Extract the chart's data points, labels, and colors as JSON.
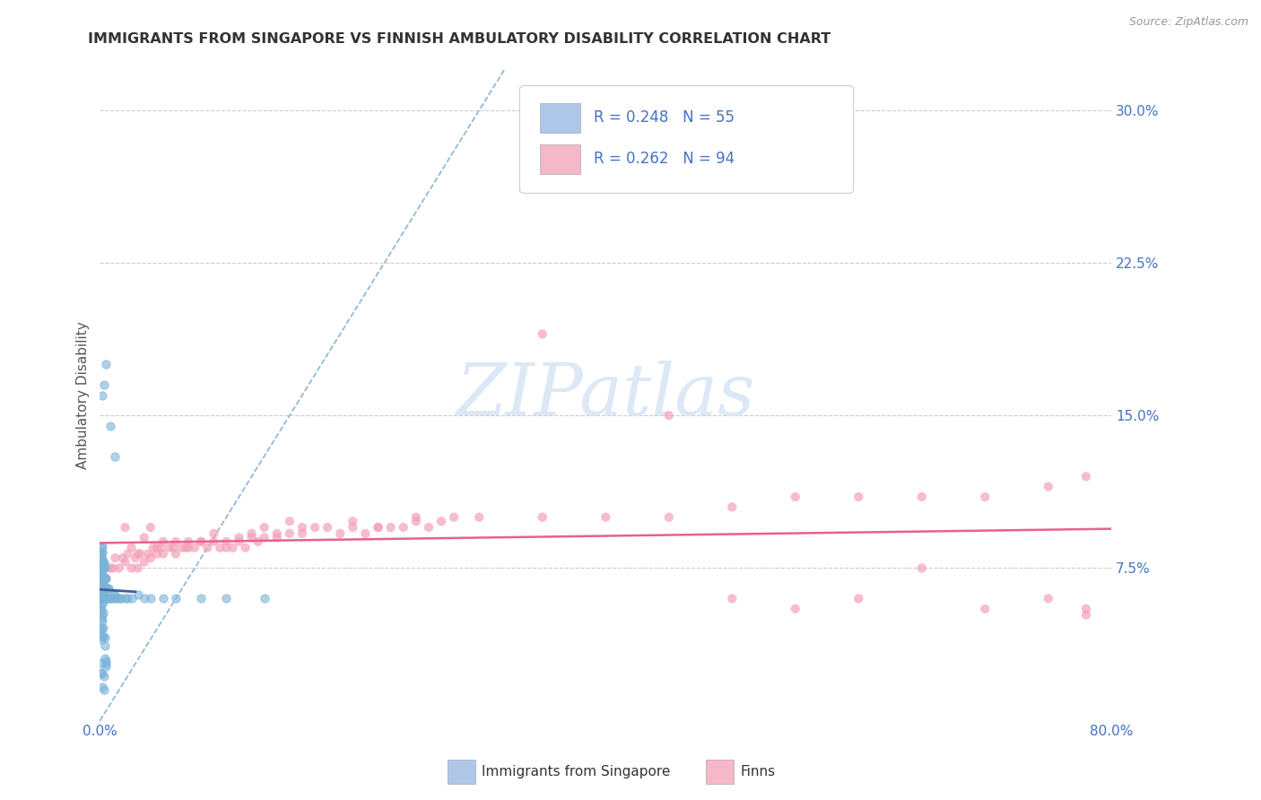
{
  "title": "IMMIGRANTS FROM SINGAPORE VS FINNISH AMBULATORY DISABILITY CORRELATION CHART",
  "source": "Source: ZipAtlas.com",
  "ylabel": "Ambulatory Disability",
  "xlim": [
    0.0,
    0.8
  ],
  "ylim": [
    0.0,
    0.32
  ],
  "yticks_right": [
    0.075,
    0.15,
    0.225,
    0.3
  ],
  "yticklabels_right": [
    "7.5%",
    "15.0%",
    "22.5%",
    "30.0%"
  ],
  "legend_label1": "R = 0.248   N = 55",
  "legend_label2": "R = 0.262   N = 94",
  "legend_color1": "#aec6e8",
  "legend_color2": "#f4b8c8",
  "series1_color": "#7ab3d8",
  "series2_color": "#f4a0b8",
  "trendline1_color": "#3a5fa0",
  "trendline2_color": "#e86090",
  "diagonal_color": "#8ab4d8",
  "watermark_color": "#dce8f5",
  "footer_label1": "Immigrants from Singapore",
  "footer_label2": "Finns",
  "sg_x": [
    0.001,
    0.001,
    0.001,
    0.001,
    0.001,
    0.001,
    0.001,
    0.001,
    0.001,
    0.001,
    0.001,
    0.001,
    0.002,
    0.002,
    0.002,
    0.002,
    0.002,
    0.002,
    0.002,
    0.002,
    0.003,
    0.003,
    0.003,
    0.003,
    0.003,
    0.004,
    0.004,
    0.004,
    0.004,
    0.005,
    0.005,
    0.005,
    0.006,
    0.006,
    0.007,
    0.007,
    0.008,
    0.009,
    0.01,
    0.011,
    0.012,
    0.013,
    0.015,
    0.017,
    0.02,
    0.022,
    0.025,
    0.03,
    0.035,
    0.04,
    0.05,
    0.06,
    0.08,
    0.1,
    0.13
  ],
  "sg_y": [
    0.06,
    0.065,
    0.07,
    0.075,
    0.08,
    0.082,
    0.083,
    0.085,
    0.055,
    0.05,
    0.045,
    0.04,
    0.06,
    0.062,
    0.065,
    0.068,
    0.072,
    0.075,
    0.058,
    0.052,
    0.06,
    0.065,
    0.07,
    0.075,
    0.078,
    0.06,
    0.065,
    0.07,
    0.075,
    0.06,
    0.065,
    0.07,
    0.06,
    0.065,
    0.06,
    0.065,
    0.06,
    0.06,
    0.062,
    0.06,
    0.062,
    0.06,
    0.06,
    0.06,
    0.06,
    0.06,
    0.06,
    0.062,
    0.06,
    0.06,
    0.06,
    0.06,
    0.06,
    0.06,
    0.06
  ],
  "fi_x": [
    0.005,
    0.008,
    0.01,
    0.012,
    0.015,
    0.018,
    0.02,
    0.022,
    0.025,
    0.028,
    0.03,
    0.032,
    0.035,
    0.038,
    0.04,
    0.042,
    0.045,
    0.048,
    0.05,
    0.055,
    0.058,
    0.06,
    0.065,
    0.068,
    0.07,
    0.075,
    0.08,
    0.085,
    0.09,
    0.095,
    0.1,
    0.105,
    0.11,
    0.115,
    0.12,
    0.125,
    0.13,
    0.14,
    0.15,
    0.16,
    0.17,
    0.18,
    0.19,
    0.2,
    0.21,
    0.22,
    0.23,
    0.24,
    0.25,
    0.26,
    0.27,
    0.28,
    0.02,
    0.025,
    0.03,
    0.035,
    0.04,
    0.045,
    0.05,
    0.06,
    0.07,
    0.08,
    0.09,
    0.1,
    0.11,
    0.12,
    0.13,
    0.14,
    0.15,
    0.16,
    0.2,
    0.22,
    0.25,
    0.3,
    0.35,
    0.4,
    0.45,
    0.5,
    0.55,
    0.6,
    0.65,
    0.7,
    0.75,
    0.78,
    0.35,
    0.45,
    0.5,
    0.55,
    0.6,
    0.65,
    0.7,
    0.75,
    0.78,
    0.78
  ],
  "fi_y": [
    0.07,
    0.075,
    0.075,
    0.08,
    0.075,
    0.08,
    0.078,
    0.082,
    0.075,
    0.08,
    0.075,
    0.082,
    0.078,
    0.082,
    0.08,
    0.085,
    0.082,
    0.085,
    0.082,
    0.085,
    0.085,
    0.088,
    0.085,
    0.085,
    0.088,
    0.085,
    0.088,
    0.085,
    0.088,
    0.085,
    0.088,
    0.085,
    0.09,
    0.085,
    0.09,
    0.088,
    0.09,
    0.09,
    0.092,
    0.092,
    0.095,
    0.095,
    0.092,
    0.095,
    0.092,
    0.095,
    0.095,
    0.095,
    0.098,
    0.095,
    0.098,
    0.1,
    0.095,
    0.085,
    0.082,
    0.09,
    0.095,
    0.085,
    0.088,
    0.082,
    0.085,
    0.088,
    0.092,
    0.085,
    0.088,
    0.092,
    0.095,
    0.092,
    0.098,
    0.095,
    0.098,
    0.095,
    0.1,
    0.1,
    0.1,
    0.1,
    0.1,
    0.105,
    0.11,
    0.11,
    0.11,
    0.11,
    0.115,
    0.12,
    0.19,
    0.15,
    0.06,
    0.055,
    0.06,
    0.075,
    0.055,
    0.06,
    0.055,
    0.052
  ]
}
